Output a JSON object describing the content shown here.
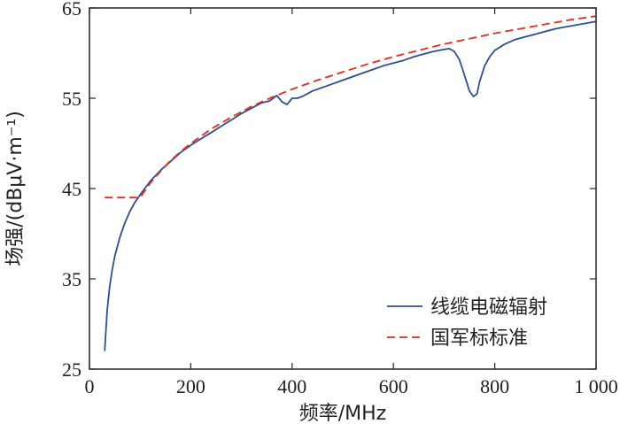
{
  "chart_data": {
    "type": "line",
    "title": "",
    "xlabel": "频率/MHz",
    "ylabel": "场强/(dBμV·m⁻¹)",
    "xlim": [
      0,
      1000
    ],
    "ylim": [
      25,
      65
    ],
    "xticks": [
      0,
      200,
      400,
      600,
      800,
      1000
    ],
    "xtick_labels": [
      "0",
      "200",
      "400",
      "600",
      "800",
      "1 000"
    ],
    "yticks": [
      25,
      35,
      45,
      55,
      65
    ],
    "ytick_labels": [
      "25",
      "35",
      "45",
      "55",
      "65"
    ],
    "grid": false,
    "legend_position": "bottom-right",
    "series": [
      {
        "name": "线缆电磁辐射",
        "color": "#2e4f8f",
        "style": "solid",
        "x": [
          30,
          35,
          40,
          45,
          50,
          60,
          70,
          80,
          90,
          100,
          120,
          140,
          160,
          180,
          200,
          220,
          240,
          260,
          280,
          300,
          320,
          340,
          355,
          365,
          370,
          380,
          390,
          400,
          410,
          420,
          430,
          440,
          460,
          480,
          500,
          520,
          540,
          560,
          580,
          600,
          620,
          640,
          660,
          680,
          700,
          710,
          720,
          730,
          740,
          750,
          758,
          765,
          770,
          780,
          790,
          800,
          820,
          840,
          860,
          880,
          900,
          920,
          940,
          960,
          980,
          1000
        ],
        "y": [
          27,
          31.5,
          34.2,
          36,
          37.5,
          39.6,
          41.2,
          42.5,
          43.5,
          44.3,
          45.8,
          47.0,
          48.0,
          49.0,
          49.8,
          50.5,
          51.2,
          51.9,
          52.6,
          53.3,
          53.9,
          54.5,
          54.7,
          55.1,
          55.3,
          54.6,
          54.3,
          55.0,
          55.0,
          55.2,
          55.5,
          55.8,
          56.2,
          56.6,
          57.0,
          57.4,
          57.8,
          58.2,
          58.6,
          58.9,
          59.2,
          59.6,
          59.9,
          60.2,
          60.4,
          60.5,
          60.2,
          59.3,
          57.6,
          55.8,
          55.2,
          55.5,
          56.8,
          58.6,
          59.6,
          60.3,
          61.0,
          61.5,
          61.8,
          62.1,
          62.4,
          62.7,
          62.9,
          63.1,
          63.3,
          63.5
        ]
      },
      {
        "name": "国军标标准",
        "color": "#e02b20",
        "style": "dashed",
        "x": [
          30,
          100,
          120,
          140,
          160,
          180,
          200,
          240,
          280,
          320,
          360,
          400,
          450,
          500,
          550,
          600,
          650,
          700,
          750,
          800,
          850,
          900,
          950,
          1000
        ],
        "y": [
          44,
          44,
          45.6,
          46.9,
          48.1,
          49.1,
          50.0,
          51.6,
          52.9,
          54.1,
          55.1,
          56.0,
          57.0,
          57.9,
          58.8,
          59.6,
          60.3,
          61.0,
          61.6,
          62.2,
          62.7,
          63.2,
          63.7,
          64.1
        ]
      }
    ]
  }
}
